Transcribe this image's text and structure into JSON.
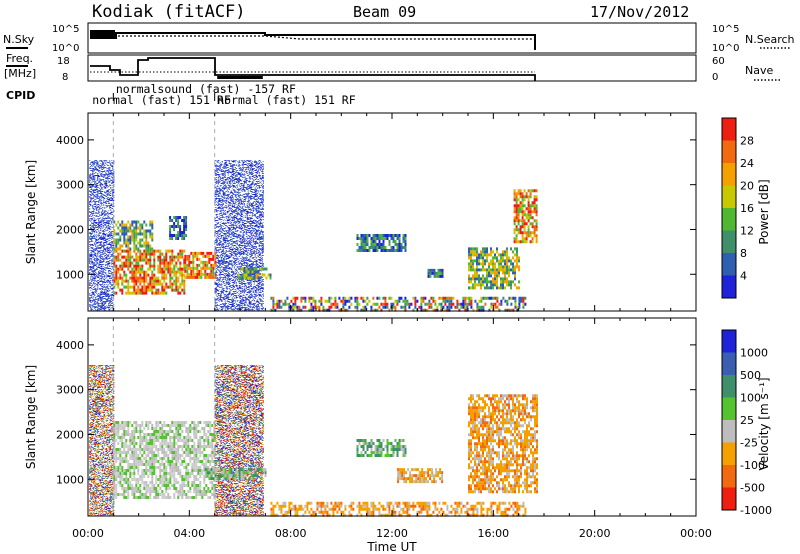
{
  "header": {
    "station": "Kodiak (fitACF)",
    "beam": "Beam 09",
    "date": "17/Nov/2012"
  },
  "summary_panels": {
    "nsky": {
      "left_label": "N.Sky",
      "left_ticks": [
        "10^5",
        "10^0"
      ],
      "right_label": "N.Search",
      "right_ticks": [
        "10^5",
        "10^0"
      ]
    },
    "freq": {
      "left_label_line1": "Freq.",
      "left_label_line2": "[MHz]",
      "left_ticks": [
        "18",
        "8"
      ],
      "right_label": "Nave",
      "right_ticks": [
        "60",
        "0"
      ]
    },
    "cpid": {
      "label": "CPID",
      "entries": [
        {
          "text": "normalsound (fast) -157 RF",
          "start_hour": 1.1
        },
        {
          "text": "normal (fast) 151 RF",
          "start_hour": 0.05
        },
        {
          "text": "normal (fast) 151 RF",
          "start_hour": 5.1
        }
      ]
    }
  },
  "chart_data": [
    {
      "type": "heatmap",
      "name": "power",
      "ylabel": "Slant Range [km]",
      "xlim_hours": [
        0,
        24
      ],
      "ylim": [
        180,
        4600
      ],
      "yticks": [
        1000,
        2000,
        3000,
        4000
      ],
      "colorbar": {
        "label": "Power [dB]",
        "ticks": [
          "4",
          "8",
          "12",
          "16",
          "20",
          "24",
          "28"
        ],
        "colors": [
          "#1e22d8",
          "#2f5fb0",
          "#3f8f6a",
          "#4fb830",
          "#c8c800",
          "#f4a000",
          "#f26a10",
          "#ee1e10"
        ]
      },
      "regions": [
        {
          "t0": 0.05,
          "t1": 1.0,
          "r0": 200,
          "r1": 3550,
          "kind": "noise"
        },
        {
          "t0": 5.0,
          "t1": 6.9,
          "r0": 200,
          "r1": 3550,
          "kind": "noise"
        },
        {
          "t0": 1.0,
          "t1": 3.8,
          "r0": 600,
          "r1": 1550,
          "kind": "strong"
        },
        {
          "t0": 3.8,
          "t1": 5.0,
          "r0": 900,
          "r1": 1500,
          "kind": "strong"
        },
        {
          "t0": 1.0,
          "t1": 2.5,
          "r0": 1550,
          "r1": 2200,
          "kind": "medium"
        },
        {
          "t0": 3.2,
          "t1": 3.9,
          "r0": 1800,
          "r1": 2300,
          "kind": "weak"
        },
        {
          "t0": 5.9,
          "t1": 7.2,
          "r0": 900,
          "r1": 1150,
          "kind": "medium"
        },
        {
          "t0": 7.2,
          "t1": 17.3,
          "r0": 200,
          "r1": 500,
          "kind": "ground"
        },
        {
          "t0": 10.6,
          "t1": 12.5,
          "r0": 1550,
          "r1": 1900,
          "kind": "weak"
        },
        {
          "t0": 13.4,
          "t1": 14.0,
          "r0": 920,
          "r1": 1120,
          "kind": "weak"
        },
        {
          "t0": 15.0,
          "t1": 17.0,
          "r0": 700,
          "r1": 1600,
          "kind": "medium"
        },
        {
          "t0": 16.8,
          "t1": 17.7,
          "r0": 1700,
          "r1": 2900,
          "kind": "strong"
        }
      ]
    },
    {
      "type": "heatmap",
      "name": "velocity",
      "xlabel": "Time UT",
      "ylabel": "Slant Range [km]",
      "xlim_hours": [
        0,
        24
      ],
      "ylim": [
        180,
        4600
      ],
      "yticks": [
        1000,
        2000,
        3000,
        4000
      ],
      "xticks": [
        "00:00",
        "04:00",
        "08:00",
        "12:00",
        "16:00",
        "20:00",
        "00:00"
      ],
      "colorbar": {
        "label": "Velocity [m s⁻¹]",
        "ticks": [
          "1000",
          "500",
          "100",
          "25",
          "-25",
          "-100",
          "-500",
          "-1000"
        ],
        "colors": [
          "#1e22d8",
          "#3a5fb0",
          "#3f8f6a",
          "#55c230",
          "#bdbdbd",
          "#f4a000",
          "#f26a10",
          "#ee1e10"
        ]
      },
      "regions": [
        {
          "t0": 0.05,
          "t1": 1.0,
          "r0": 200,
          "r1": 3550,
          "kind": "noise"
        },
        {
          "t0": 5.0,
          "t1": 6.9,
          "r0": 200,
          "r1": 3550,
          "kind": "noise"
        },
        {
          "t0": 1.0,
          "t1": 5.0,
          "r0": 600,
          "r1": 2300,
          "kind": "grey"
        },
        {
          "t0": 4.6,
          "t1": 7.0,
          "r0": 1000,
          "r1": 1250,
          "kind": "green"
        },
        {
          "t0": 7.2,
          "t1": 17.3,
          "r0": 200,
          "r1": 500,
          "kind": "orange"
        },
        {
          "t0": 10.6,
          "t1": 12.5,
          "r0": 1550,
          "r1": 1900,
          "kind": "green"
        },
        {
          "t0": 12.2,
          "t1": 14.0,
          "r0": 920,
          "r1": 1250,
          "kind": "orange"
        },
        {
          "t0": 15.0,
          "t1": 17.7,
          "r0": 700,
          "r1": 2900,
          "kind": "orange"
        }
      ]
    }
  ]
}
